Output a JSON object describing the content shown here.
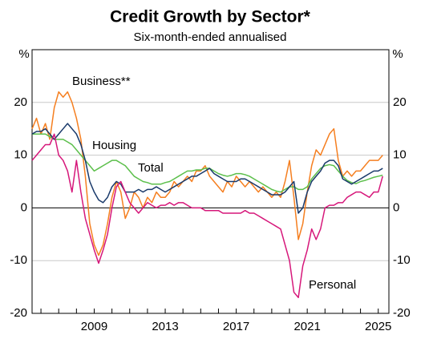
{
  "chart_data": {
    "type": "line",
    "title": "Credit Growth by Sector*",
    "subtitle": "Six-month-ended annualised",
    "y_unit": "%",
    "x": [
      2005.5,
      2005.75,
      2006,
      2006.25,
      2006.5,
      2006.75,
      2007,
      2007.25,
      2007.5,
      2007.75,
      2008,
      2008.25,
      2008.5,
      2008.75,
      2009,
      2009.25,
      2009.5,
      2009.75,
      2010,
      2010.25,
      2010.5,
      2010.75,
      2011,
      2011.25,
      2011.5,
      2011.75,
      2012,
      2012.25,
      2012.5,
      2012.75,
      2013,
      2013.25,
      2013.5,
      2013.75,
      2014,
      2014.25,
      2014.5,
      2014.75,
      2015,
      2015.25,
      2015.5,
      2015.75,
      2016,
      2016.25,
      2016.5,
      2016.75,
      2017,
      2017.25,
      2017.5,
      2017.75,
      2018,
      2018.25,
      2018.5,
      2018.75,
      2019,
      2019.25,
      2019.5,
      2019.75,
      2020,
      2020.25,
      2020.5,
      2020.75,
      2021,
      2021.25,
      2021.5,
      2021.75,
      2022,
      2022.25,
      2022.5,
      2022.75,
      2023,
      2023.25,
      2023.5,
      2023.75,
      2024,
      2024.25,
      2024.5,
      2024.75,
      2025,
      2025.25
    ],
    "series": [
      {
        "name": "Business**",
        "color": "#f57f20",
        "values": [
          15,
          17,
          14,
          16,
          13,
          19,
          22,
          21,
          22,
          20,
          17,
          13,
          6,
          -3,
          -7,
          -9,
          -7,
          -3,
          2,
          5,
          3,
          -2,
          0,
          3,
          2,
          0,
          2,
          1,
          3,
          2,
          2,
          3,
          5,
          4,
          5,
          6,
          5,
          7,
          7,
          8,
          6,
          5,
          4,
          3,
          5,
          4,
          6,
          5,
          4,
          5,
          4,
          3,
          4,
          3,
          2,
          3,
          2,
          5,
          9,
          2,
          -6,
          -3,
          3,
          8,
          11,
          10,
          12,
          14,
          15,
          9,
          6,
          7,
          6,
          7,
          7,
          8,
          9,
          9,
          9,
          10
        ]
      },
      {
        "name": "Housing",
        "color": "#5cbf4b",
        "values": [
          14,
          14,
          14,
          14,
          13.5,
          13,
          13,
          13,
          12.5,
          12,
          11,
          10,
          9,
          8,
          7,
          7.5,
          8,
          8.5,
          9,
          9,
          8.5,
          8,
          7,
          6,
          5.5,
          5,
          4.8,
          4.5,
          4.5,
          4.5,
          4.8,
          5,
          5.5,
          6,
          6.5,
          7,
          7,
          7.2,
          7.2,
          7.5,
          7.5,
          7,
          6.5,
          6.2,
          6,
          6.2,
          6.5,
          6.5,
          6.3,
          6,
          5.5,
          5,
          4.5,
          4,
          3.5,
          3.2,
          3,
          3.5,
          4,
          4,
          3.5,
          3.5,
          4,
          5.5,
          6.5,
          7.5,
          8,
          8.2,
          8,
          7,
          6,
          5.2,
          4.8,
          4.6,
          5,
          5.2,
          5.5,
          5.8,
          6,
          6.2
        ]
      },
      {
        "name": "Total",
        "color": "#1a3a6b",
        "values": [
          14,
          14.5,
          14.5,
          15,
          14,
          13,
          14,
          15,
          16,
          15,
          14,
          12,
          9,
          5,
          3,
          1.5,
          1,
          2,
          4,
          5,
          4.5,
          3,
          3,
          3,
          3.5,
          3,
          3.5,
          3.5,
          4,
          3.5,
          3,
          3.5,
          4,
          4.5,
          5,
          5.5,
          6,
          6,
          6.5,
          7,
          7.5,
          6.5,
          6,
          5.5,
          5,
          5,
          5,
          5.5,
          5.5,
          5,
          4.5,
          4,
          3.5,
          3,
          2.5,
          2.5,
          2.5,
          3,
          4,
          5,
          -1,
          0,
          3,
          5,
          6,
          7,
          8.5,
          9,
          9,
          8,
          5.5,
          5,
          4.5,
          5,
          5.5,
          6,
          6.5,
          7,
          7,
          7.5
        ]
      },
      {
        "name": "Personal",
        "color": "#d6177a",
        "values": [
          9,
          10,
          11,
          12,
          12,
          14,
          10,
          9,
          7,
          3,
          9,
          3,
          -2,
          -5,
          -8,
          -10.5,
          -8,
          -5,
          0,
          4,
          5,
          3,
          1,
          0,
          -1,
          0,
          1,
          0.5,
          0,
          0.5,
          0.5,
          1,
          0.5,
          1,
          1,
          0.5,
          0,
          0,
          0,
          -0.5,
          -0.5,
          -0.5,
          -0.5,
          -1,
          -1,
          -1,
          -1,
          -1,
          -0.5,
          -1,
          -1,
          -1.5,
          -2,
          -2.5,
          -3,
          -3.5,
          -4,
          -7,
          -10,
          -16,
          -17,
          -11,
          -8,
          -4,
          -6,
          -4,
          0,
          0.5,
          0.5,
          1,
          1,
          2,
          2.5,
          3,
          3,
          2.5,
          2,
          3,
          3,
          6
        ]
      }
    ],
    "xlim": [
      2005.5,
      2025.6
    ],
    "xticks": [
      2009,
      2013,
      2017,
      2021,
      2025
    ],
    "minor_xticks": [
      2006,
      2007,
      2008,
      2009,
      2010,
      2011,
      2012,
      2013,
      2014,
      2015,
      2016,
      2017,
      2018,
      2019,
      2020,
      2021,
      2022,
      2023,
      2024,
      2025
    ],
    "ylim": [
      -20,
      30
    ],
    "yticks": [
      -20,
      -10,
      0,
      10,
      20
    ],
    "grid": true
  }
}
